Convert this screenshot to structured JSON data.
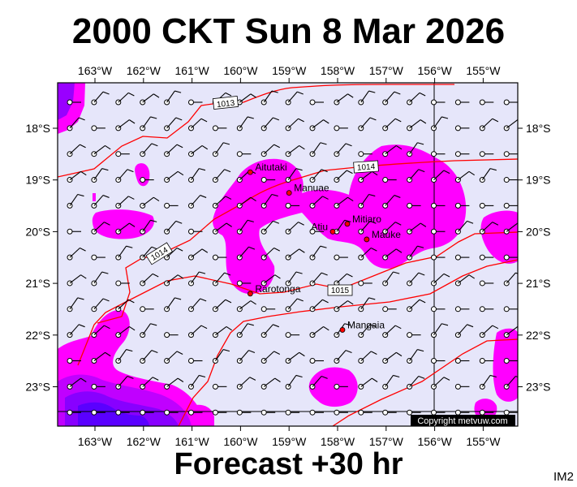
{
  "title": "2000 CKT Sun 8 Mar 2026",
  "footer": "Forecast +30 hr",
  "code": "IM2",
  "copyright": "Copyright metvuw.com",
  "lon_labels": [
    "163°W",
    "162°W",
    "161°W",
    "160°W",
    "159°W",
    "158°W",
    "157°W",
    "156°W",
    "155°W"
  ],
  "lat_labels": [
    "18°S",
    "19°S",
    "20°S",
    "21°S",
    "22°S",
    "23°S"
  ],
  "isobar_labels": [
    "1013",
    "1014",
    "1014",
    "1015"
  ],
  "places": [
    {
      "name": "Aitutaki",
      "lon": -159.8,
      "lat": -18.85
    },
    {
      "name": "Manuae",
      "lon": -159.0,
      "lat": -19.25
    },
    {
      "name": "Mitiaro",
      "lon": -157.8,
      "lat": -19.85
    },
    {
      "name": "Atiu",
      "lon": -158.1,
      "lat": -20.0
    },
    {
      "name": "Mauke",
      "lon": -157.4,
      "lat": -20.15
    },
    {
      "name": "Rarotonga",
      "lon": -159.8,
      "lat": -21.2
    },
    {
      "name": "Mangaia",
      "lon": -157.9,
      "lat": -21.9
    }
  ],
  "colors": {
    "ocean": "#e6e6fa",
    "rain_light": "#ff00ff",
    "rain_mid": "#c000ff",
    "rain_heavy": "#8800ff",
    "rain_heaviest": "#5a00ff",
    "isobar": "#ff0000",
    "place_dot": "#ff0000"
  }
}
